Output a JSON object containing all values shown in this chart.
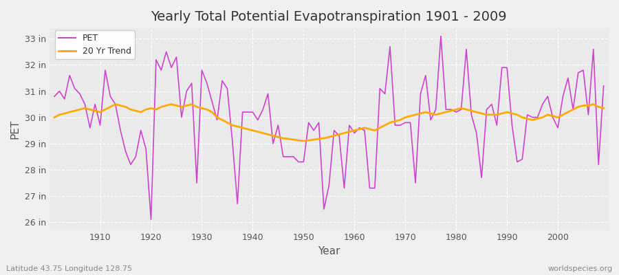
{
  "title": "Yearly Total Potential Evapotranspiration 1901 - 2009",
  "xlabel": "Year",
  "ylabel": "PET",
  "bottom_left": "Latitude 43.75 Longitude 128.75",
  "bottom_right": "worldspecies.org",
  "pet_color": "#cc44cc",
  "trend_color": "#ffaa00",
  "bg_color": "#f0f0f0",
  "plot_bg_color": "#eaeaea",
  "ylim": [
    25.7,
    33.4
  ],
  "yticks": [
    26,
    27,
    28,
    29,
    30,
    31,
    32,
    33
  ],
  "years": [
    1901,
    1902,
    1903,
    1904,
    1905,
    1906,
    1907,
    1908,
    1909,
    1910,
    1911,
    1912,
    1913,
    1914,
    1915,
    1916,
    1917,
    1918,
    1919,
    1920,
    1921,
    1922,
    1923,
    1924,
    1925,
    1926,
    1927,
    1928,
    1929,
    1930,
    1931,
    1932,
    1933,
    1934,
    1935,
    1936,
    1937,
    1938,
    1939,
    1940,
    1941,
    1942,
    1943,
    1944,
    1945,
    1946,
    1947,
    1948,
    1949,
    1950,
    1951,
    1952,
    1953,
    1954,
    1955,
    1956,
    1957,
    1958,
    1959,
    1960,
    1961,
    1962,
    1963,
    1964,
    1965,
    1966,
    1967,
    1968,
    1969,
    1970,
    1971,
    1972,
    1973,
    1974,
    1975,
    1976,
    1977,
    1978,
    1979,
    1980,
    1981,
    1982,
    1983,
    1984,
    1985,
    1986,
    1987,
    1988,
    1989,
    1990,
    1991,
    1992,
    1993,
    1994,
    1995,
    1996,
    1997,
    1998,
    1999,
    2000,
    2001,
    2002,
    2003,
    2004,
    2005,
    2006,
    2007,
    2008,
    2009
  ],
  "pet": [
    30.8,
    31.0,
    30.7,
    31.6,
    31.1,
    30.9,
    30.5,
    29.6,
    30.5,
    29.7,
    31.8,
    30.8,
    30.5,
    29.5,
    28.7,
    28.2,
    28.5,
    29.5,
    28.8,
    26.1,
    32.2,
    31.8,
    32.5,
    31.9,
    32.3,
    30.0,
    31.0,
    31.3,
    27.5,
    31.8,
    31.3,
    30.6,
    29.9,
    31.4,
    31.1,
    29.1,
    26.7,
    30.2,
    30.2,
    30.2,
    29.9,
    30.3,
    30.9,
    29.0,
    29.7,
    28.5,
    28.5,
    28.5,
    28.3,
    28.3,
    29.8,
    29.5,
    29.8,
    26.5,
    27.4,
    29.5,
    29.3,
    27.3,
    29.7,
    29.4,
    29.6,
    29.5,
    27.3,
    27.3,
    31.1,
    30.9,
    32.7,
    29.7,
    29.7,
    29.8,
    29.8,
    27.5,
    30.9,
    31.6,
    29.9,
    30.3,
    33.1,
    30.3,
    30.3,
    30.2,
    30.3,
    32.6,
    30.1,
    29.4,
    27.7,
    30.3,
    30.5,
    29.7,
    31.9,
    31.9,
    29.7,
    28.3,
    28.4,
    30.1,
    30.0,
    30.0,
    30.5,
    30.8,
    30.0,
    29.6,
    30.8,
    31.5,
    30.3,
    31.7,
    31.8,
    30.1,
    32.6,
    28.2,
    31.2
  ],
  "trend": [
    30.0,
    30.1,
    30.15,
    30.2,
    30.25,
    30.3,
    30.35,
    30.3,
    30.25,
    30.2,
    30.3,
    30.4,
    30.5,
    30.45,
    30.4,
    30.3,
    30.25,
    30.2,
    30.3,
    30.35,
    30.3,
    30.4,
    30.45,
    30.5,
    30.45,
    30.4,
    30.45,
    30.5,
    30.4,
    30.35,
    30.3,
    30.2,
    30.0,
    29.9,
    29.8,
    29.7,
    29.65,
    29.6,
    29.55,
    29.5,
    29.45,
    29.4,
    29.35,
    29.3,
    29.25,
    29.2,
    29.18,
    29.15,
    29.12,
    29.1,
    29.12,
    29.15,
    29.18,
    29.2,
    29.25,
    29.3,
    29.35,
    29.4,
    29.45,
    29.5,
    29.55,
    29.6,
    29.55,
    29.5,
    29.6,
    29.7,
    29.8,
    29.85,
    29.9,
    30.0,
    30.05,
    30.1,
    30.15,
    30.2,
    30.15,
    30.1,
    30.15,
    30.2,
    30.25,
    30.3,
    30.35,
    30.3,
    30.25,
    30.2,
    30.15,
    30.1,
    30.1,
    30.1,
    30.15,
    30.2,
    30.15,
    30.1,
    30.0,
    29.95,
    29.9,
    29.95,
    30.0,
    30.1,
    30.05,
    30.0,
    30.1,
    30.2,
    30.3,
    30.4,
    30.45,
    30.45,
    30.5,
    30.4,
    30.35
  ]
}
